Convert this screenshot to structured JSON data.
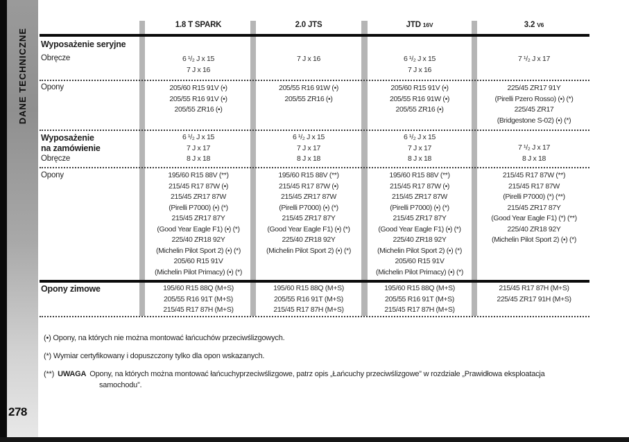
{
  "sidebar": {
    "vertical_label": "DANE TECHNICZNE",
    "page_number": "278"
  },
  "table": {
    "header": {
      "col1": "1.8 T SPARK",
      "col2": "2.0 JTS",
      "col3_main": "JTD ",
      "col3_sub": "16V",
      "col4_main": "3.2 ",
      "col4_sub": "V6"
    },
    "standard": {
      "title": "Wyposażenie seryjne",
      "rims_label": "Obręcze",
      "rims": {
        "c1": [
          "6 ¹/₂ J x 15",
          "7 J x 16"
        ],
        "c2": [
          "7 J x 16"
        ],
        "c3": [
          "6 ¹/₂ J x 15",
          "7 J x 16"
        ],
        "c4": [
          "7 ¹/₂ J x 17"
        ]
      },
      "tyres_label": "Opony",
      "tyres": {
        "c1": [
          "205/60 R15 91V (•)",
          "205/55 R16 91V (•)",
          "205/55 ZR16 (•)"
        ],
        "c2": [
          "205/55 R16 91W (•)",
          "205/55 ZR16 (•)"
        ],
        "c3": [
          "205/60 R15 91V (•)",
          "205/55 R16 91W (•)",
          "205/55 ZR16 (•)"
        ],
        "c4": [
          "225/45 ZR17 91Y",
          "(Pirelli Pzero Rosso) (•) (*)",
          "225/45 ZR17",
          "(Bridgestone S-02) (•) (*)"
        ]
      }
    },
    "optional": {
      "title_line1": "Wyposażenie",
      "title_line2": "na zamówienie",
      "rims_label": "Obręcze",
      "rims": {
        "c1": [
          "6 ¹/₂ J x 15",
          "7 J x 17",
          "8 J x 18"
        ],
        "c2": [
          "6 ¹/₂ J x 15",
          "7 J x 17",
          "8 J x 18"
        ],
        "c3": [
          "6 ¹/₂ J x 15",
          "7 J x 17",
          "8 J x 18"
        ],
        "c4": [
          "7 ¹/₂ J x 17",
          "8 J x 18"
        ]
      },
      "tyres_label": "Opony",
      "tyres": {
        "c1": [
          "195/60 R15 88V (**)",
          "215/45 R17 87W (•)",
          "215/45 ZR17 87W",
          "(Pirelli P7000) (•) (*)",
          "215/45 ZR17 87Y",
          "(Good Year Eagle F1) (•) (*)",
          "225/40 ZR18 92Y",
          "(Michelin Pilot Sport 2) (•) (*)",
          "205/60 R15 91V",
          "(Michelin Pilot Primacy) (•) (*)"
        ],
        "c2": [
          "195/60 R15 88V (**)",
          "215/45 R17 87W (•)",
          "215/45 ZR17 87W",
          "(Pirelli P7000) (•) (*)",
          "215/45 ZR17 87Y",
          "(Good Year Eagle F1) (•) (*)",
          "225/40 ZR18 92Y",
          "(Michelin Pilot Sport 2) (•) (*)"
        ],
        "c3": [
          "195/60 R15 88V (**)",
          "215/45 R17 87W (•)",
          "215/45 ZR17 87W",
          "(Pirelli P7000) (•) (*)",
          "215/45 ZR17 87Y",
          "(Good Year Eagle F1) (•) (*)",
          "225/40 ZR18 92Y",
          "(Michelin Pilot Sport 2) (•) (*)",
          "205/60 R15 91V",
          "(Michelin Pilot Primacy) (•) (*)"
        ],
        "c4": [
          "215/45 R17 87W (**)",
          "215/45 R17 87W",
          "(Pirelli P7000) (*) (**)",
          "215/45 ZR17 87Y",
          "(Good Year Eagle F1) (*) (**)",
          "225/40 ZR18 92Y",
          "(Michelin Pilot Sport 2) (•) (*)"
        ]
      }
    },
    "winter": {
      "title": "Opony zimowe",
      "tyres": {
        "c1": [
          "195/60 R15 88Q (M+S)",
          "205/55 R16 91T (M+S)",
          "215/45 R17 87H (M+S)"
        ],
        "c2": [
          "195/60 R15 88Q (M+S)",
          "205/55 R16 91T (M+S)",
          "215/45 R17 87H (M+S)"
        ],
        "c3": [
          "195/60 R15 88Q (M+S)",
          "205/55 R16 91T (M+S)",
          "215/45 R17 87H (M+S)"
        ],
        "c4": [
          "215/45 R17 87H (M+S)",
          "225/45 ZR17 91H (M+S)"
        ]
      }
    }
  },
  "footnotes": {
    "fn1": "(•) Opony, na których nie można montować łańcuchów przeciwślizgowych.",
    "fn2": "(*) Wymiar certyfikowany i dopuszczony tylko dla opon wskazanych.",
    "fn3_marker": "(**)",
    "fn3_bold": "UWAGA",
    "fn3_text": "Opony, na których można montować łańcuchyprzeciwślizgowe, patrz opis „Łańcuchy przeciwślizgowe” w rozdziale „Prawidłowa eksploatacja",
    "fn3_text2": "samochodu”."
  },
  "colors": {
    "separator_gray": "#b5b5b5",
    "line_black": "#0a0a0a"
  }
}
